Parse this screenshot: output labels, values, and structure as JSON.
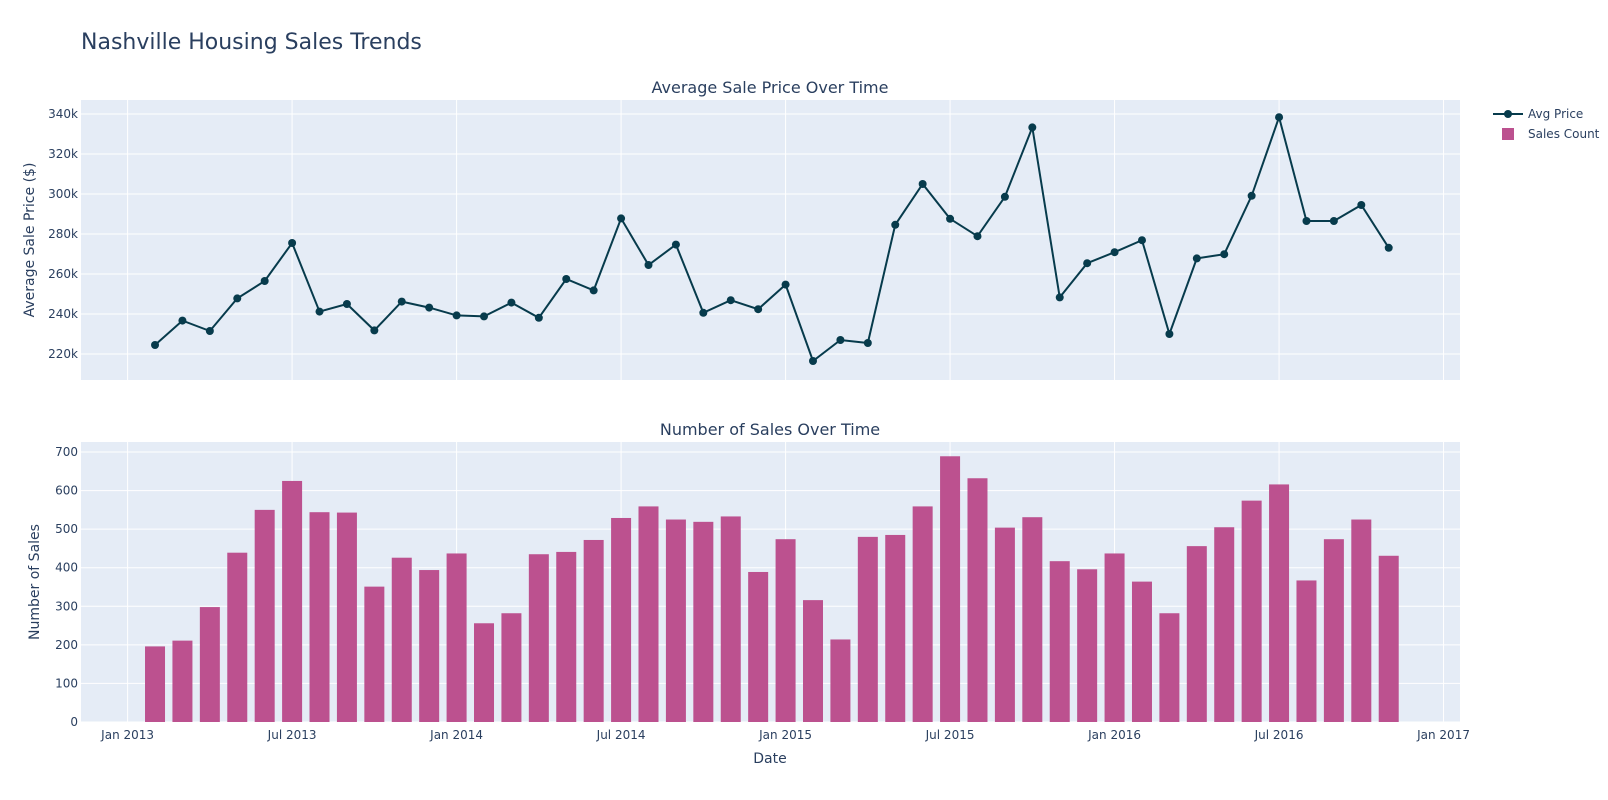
{
  "page": {
    "title": "Nashville Housing Sales Trends"
  },
  "colors": {
    "price_line": "#073b4c",
    "sales_bar": "#bc518f",
    "plot_bg": "#e5ecf6",
    "grid": "#ffffff",
    "text": "#2a3f5f"
  },
  "legend": [
    {
      "label": "Avg Price",
      "type": "line"
    },
    {
      "label": "Sales Count",
      "type": "bar"
    }
  ],
  "x_axis": {
    "title": "Date",
    "tick_labels": [
      "Jan 2013",
      "Jul 2013",
      "Jan 2014",
      "Jul 2014",
      "Jan 2015",
      "Jul 2015",
      "Jan 2016",
      "Jul 2016",
      "Jan 2017"
    ],
    "tick_months": [
      0,
      6,
      12,
      18,
      24,
      30,
      36,
      42,
      48
    ],
    "range_months": [
      -1.7,
      48.6
    ]
  },
  "chart_data": [
    {
      "type": "line",
      "title": "Average Sale Price Over Time",
      "xlabel": "",
      "ylabel": "Average Sale Price ($)",
      "ylim": [
        207000,
        347000
      ],
      "yticks": [
        220000,
        240000,
        260000,
        280000,
        300000,
        320000,
        340000
      ],
      "ytick_labels": [
        "220k",
        "240k",
        "260k",
        "280k",
        "300k",
        "320k",
        "340k"
      ],
      "series": [
        {
          "name": "Avg Price",
          "x": [
            "2013-02",
            "2013-03",
            "2013-04",
            "2013-05",
            "2013-06",
            "2013-07",
            "2013-08",
            "2013-09",
            "2013-10",
            "2013-11",
            "2013-12",
            "2014-01",
            "2014-02",
            "2014-03",
            "2014-04",
            "2014-05",
            "2014-06",
            "2014-07",
            "2014-08",
            "2014-09",
            "2014-10",
            "2014-11",
            "2014-12",
            "2015-01",
            "2015-02",
            "2015-03",
            "2015-04",
            "2015-05",
            "2015-06",
            "2015-07",
            "2015-08",
            "2015-09",
            "2015-10",
            "2015-11",
            "2015-12",
            "2016-01",
            "2016-02",
            "2016-03",
            "2016-04",
            "2016-05",
            "2016-06",
            "2016-07",
            "2016-08",
            "2016-09",
            "2016-10",
            "2016-11"
          ],
          "values": [
            224500,
            236700,
            231500,
            247800,
            256500,
            275500,
            241200,
            245000,
            231800,
            246200,
            243200,
            239300,
            238800,
            245700,
            238100,
            257500,
            251800,
            287800,
            264500,
            274700,
            240600,
            246900,
            242400,
            254700,
            216500,
            227000,
            225500,
            284600,
            305000,
            287600,
            278900,
            298600,
            333300,
            248300,
            265400,
            270900,
            276900,
            230000,
            267800,
            269900,
            299100,
            338400,
            286500,
            286500,
            294500,
            273100
          ]
        }
      ]
    },
    {
      "type": "bar",
      "title": "Number of Sales Over Time",
      "xlabel": "Date",
      "ylabel": "Number of Sales",
      "ylim": [
        0,
        726
      ],
      "yticks": [
        0,
        100,
        200,
        300,
        400,
        500,
        600,
        700
      ],
      "ytick_labels": [
        "0",
        "100",
        "200",
        "300",
        "400",
        "500",
        "600",
        "700"
      ],
      "series": [
        {
          "name": "Sales Count",
          "x": [
            "2013-02",
            "2013-03",
            "2013-04",
            "2013-05",
            "2013-06",
            "2013-07",
            "2013-08",
            "2013-09",
            "2013-10",
            "2013-11",
            "2013-12",
            "2014-01",
            "2014-02",
            "2014-03",
            "2014-04",
            "2014-05",
            "2014-06",
            "2014-07",
            "2014-08",
            "2014-09",
            "2014-10",
            "2014-11",
            "2014-12",
            "2015-01",
            "2015-02",
            "2015-03",
            "2015-04",
            "2015-05",
            "2015-06",
            "2015-07",
            "2015-08",
            "2015-09",
            "2015-10",
            "2015-11",
            "2015-12",
            "2016-01",
            "2016-02",
            "2016-03",
            "2016-04",
            "2016-05",
            "2016-06",
            "2016-07",
            "2016-08",
            "2016-09",
            "2016-10",
            "2016-11"
          ],
          "values": [
            196,
            211,
            298,
            439,
            550,
            625,
            544,
            543,
            351,
            426,
            394,
            437,
            256,
            282,
            435,
            441,
            472,
            529,
            559,
            525,
            519,
            533,
            389,
            474,
            316,
            214,
            480,
            485,
            559,
            689,
            632,
            504,
            531,
            417,
            396,
            437,
            364,
            282,
            456,
            505,
            574,
            616,
            367,
            474,
            525,
            431
          ]
        }
      ]
    }
  ]
}
